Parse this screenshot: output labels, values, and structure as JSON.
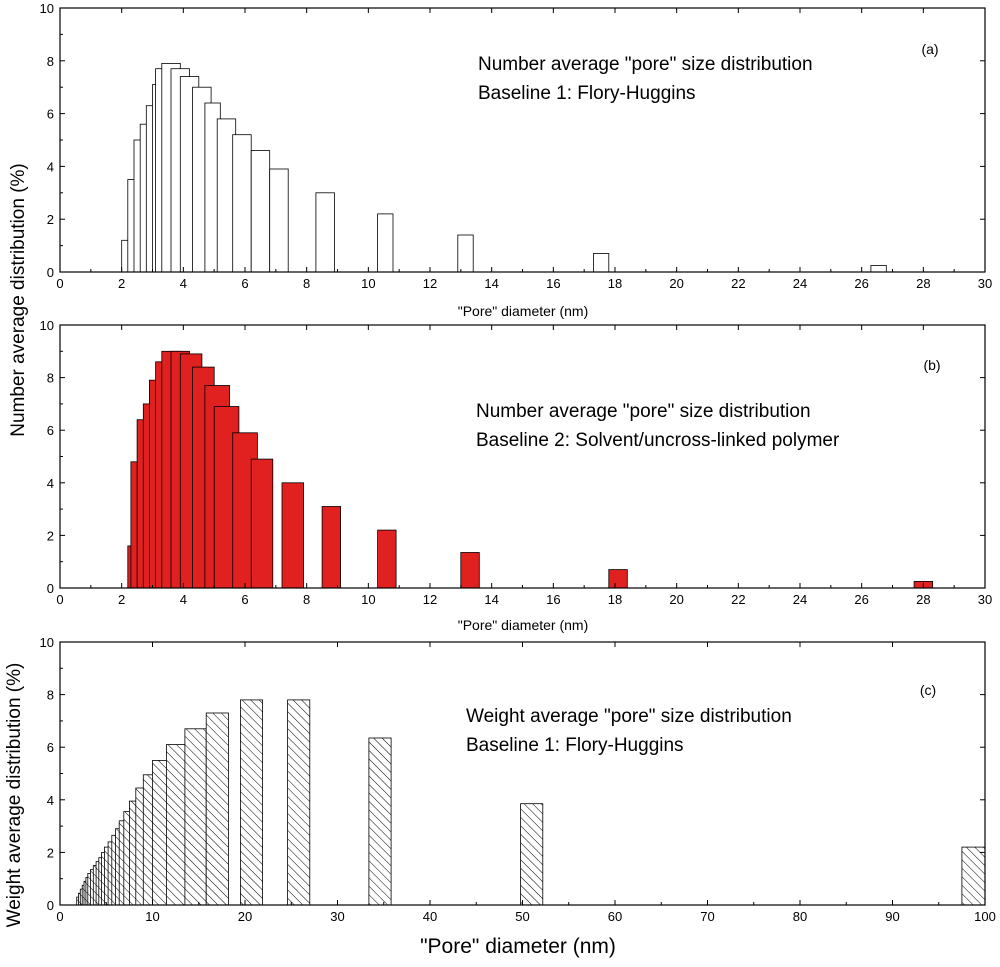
{
  "figure": {
    "shared_ylabel_ab": "Number average distribution (%)"
  },
  "chart_data": [
    {
      "type": "bar",
      "panel_label": "(a)",
      "annotation": [
        "Number average \"pore\" size distribution",
        "Baseline 1: Flory-Huggins"
      ],
      "xlabel": "\"Pore\" diameter (nm)",
      "ylabel": "",
      "xlim": [
        0,
        30
      ],
      "ylim": [
        0,
        10
      ],
      "xticks": [
        0,
        2,
        4,
        6,
        8,
        10,
        12,
        14,
        16,
        18,
        20,
        22,
        24,
        26,
        28,
        30
      ],
      "yticks": [
        0,
        2,
        4,
        6,
        8,
        10
      ],
      "fill": "#ffffff",
      "stroke": "#000000",
      "pattern": "none",
      "bars": [
        {
          "x0": 2.0,
          "x1": 2.5,
          "value": 1.2
        },
        {
          "x0": 2.2,
          "x1": 2.7,
          "value": 3.5
        },
        {
          "x0": 2.4,
          "x1": 2.9,
          "value": 5.0
        },
        {
          "x0": 2.6,
          "x1": 3.1,
          "value": 5.6
        },
        {
          "x0": 2.8,
          "x1": 3.3,
          "value": 6.3
        },
        {
          "x0": 3.0,
          "x1": 3.6,
          "value": 7.1
        },
        {
          "x0": 3.1,
          "x1": 3.7,
          "value": 7.7
        },
        {
          "x0": 3.3,
          "x1": 3.9,
          "value": 7.9
        },
        {
          "x0": 3.6,
          "x1": 4.2,
          "value": 7.7
        },
        {
          "x0": 3.9,
          "x1": 4.5,
          "value": 7.4
        },
        {
          "x0": 4.3,
          "x1": 4.9,
          "value": 7.0
        },
        {
          "x0": 4.7,
          "x1": 5.2,
          "value": 6.4
        },
        {
          "x0": 5.1,
          "x1": 5.7,
          "value": 5.8
        },
        {
          "x0": 5.6,
          "x1": 6.2,
          "value": 5.2
        },
        {
          "x0": 6.2,
          "x1": 6.8,
          "value": 4.6
        },
        {
          "x0": 6.8,
          "x1": 7.4,
          "value": 3.9
        },
        {
          "x0": 8.3,
          "x1": 8.9,
          "value": 3.0
        },
        {
          "x0": 10.3,
          "x1": 10.8,
          "value": 2.2
        },
        {
          "x0": 12.9,
          "x1": 13.4,
          "value": 1.4
        },
        {
          "x0": 17.3,
          "x1": 17.8,
          "value": 0.7
        },
        {
          "x0": 26.3,
          "x1": 26.8,
          "value": 0.25
        }
      ]
    },
    {
      "type": "bar",
      "panel_label": "(b)",
      "annotation": [
        "Number average \"pore\" size distribution",
        "Baseline 2: Solvent/uncross-linked polymer"
      ],
      "xlabel": "\"Pore\" diameter (nm)",
      "ylabel": "",
      "xlim": [
        0,
        30
      ],
      "ylim": [
        0,
        10
      ],
      "xticks": [
        0,
        2,
        4,
        6,
        8,
        10,
        12,
        14,
        16,
        18,
        20,
        22,
        24,
        26,
        28,
        30
      ],
      "yticks": [
        0,
        2,
        4,
        6,
        8,
        10
      ],
      "fill": "#e12020",
      "stroke": "#000000",
      "pattern": "none",
      "bars": [
        {
          "x0": 2.2,
          "x1": 2.4,
          "value": 1.6
        },
        {
          "x0": 2.3,
          "x1": 2.6,
          "value": 4.8
        },
        {
          "x0": 2.5,
          "x1": 2.8,
          "value": 6.4
        },
        {
          "x0": 2.7,
          "x1": 3.0,
          "value": 7.0
        },
        {
          "x0": 2.9,
          "x1": 3.3,
          "value": 7.9
        },
        {
          "x0": 3.1,
          "x1": 3.5,
          "value": 8.6
        },
        {
          "x0": 3.3,
          "x1": 3.9,
          "value": 9.0
        },
        {
          "x0": 3.6,
          "x1": 4.2,
          "value": 9.0
        },
        {
          "x0": 3.9,
          "x1": 4.6,
          "value": 8.9
        },
        {
          "x0": 4.3,
          "x1": 5.0,
          "value": 8.4
        },
        {
          "x0": 4.7,
          "x1": 5.5,
          "value": 7.7
        },
        {
          "x0": 5.0,
          "x1": 5.8,
          "value": 6.9
        },
        {
          "x0": 5.6,
          "x1": 6.4,
          "value": 5.9
        },
        {
          "x0": 6.2,
          "x1": 6.9,
          "value": 4.9
        },
        {
          "x0": 7.2,
          "x1": 7.9,
          "value": 4.0
        },
        {
          "x0": 8.5,
          "x1": 9.1,
          "value": 3.1
        },
        {
          "x0": 10.3,
          "x1": 10.9,
          "value": 2.2
        },
        {
          "x0": 13.0,
          "x1": 13.6,
          "value": 1.35
        },
        {
          "x0": 17.8,
          "x1": 18.4,
          "value": 0.7
        },
        {
          "x0": 27.7,
          "x1": 28.3,
          "value": 0.25
        }
      ]
    },
    {
      "type": "bar",
      "panel_label": "(c)",
      "annotation": [
        "Weight average \"pore\" size distribution",
        "Baseline 1: Flory-Huggins"
      ],
      "xlabel": "\"Pore\" diameter (nm)",
      "ylabel": "Weight average distribution (%)",
      "xlim": [
        0,
        100
      ],
      "ylim": [
        0,
        10
      ],
      "xticks": [
        0,
        10,
        20,
        30,
        40,
        50,
        60,
        70,
        80,
        90,
        100
      ],
      "yticks": [
        0,
        2,
        4,
        6,
        8,
        10
      ],
      "fill": "#ffffff",
      "stroke": "#000000",
      "pattern": "diagonal-hatch",
      "bars": [
        {
          "x0": 1.8,
          "x1": 3.8,
          "value": 0.3
        },
        {
          "x0": 2.0,
          "x1": 4.0,
          "value": 0.45
        },
        {
          "x0": 2.2,
          "x1": 4.2,
          "value": 0.6
        },
        {
          "x0": 2.4,
          "x1": 4.4,
          "value": 0.75
        },
        {
          "x0": 2.6,
          "x1": 4.6,
          "value": 0.9
        },
        {
          "x0": 2.8,
          "x1": 4.8,
          "value": 1.05
        },
        {
          "x0": 3.0,
          "x1": 5.0,
          "value": 1.2
        },
        {
          "x0": 3.3,
          "x1": 5.3,
          "value": 1.35
        },
        {
          "x0": 3.6,
          "x1": 5.6,
          "value": 1.5
        },
        {
          "x0": 3.9,
          "x1": 5.9,
          "value": 1.65
        },
        {
          "x0": 4.2,
          "x1": 6.2,
          "value": 1.8
        },
        {
          "x0": 4.5,
          "x1": 6.5,
          "value": 2.0
        },
        {
          "x0": 4.8,
          "x1": 6.8,
          "value": 2.2
        },
        {
          "x0": 5.2,
          "x1": 7.2,
          "value": 2.4
        },
        {
          "x0": 5.6,
          "x1": 7.6,
          "value": 2.65
        },
        {
          "x0": 6.0,
          "x1": 8.0,
          "value": 2.9
        },
        {
          "x0": 6.4,
          "x1": 8.4,
          "value": 3.2
        },
        {
          "x0": 6.9,
          "x1": 8.9,
          "value": 3.55
        },
        {
          "x0": 7.5,
          "x1": 9.5,
          "value": 3.95
        },
        {
          "x0": 8.2,
          "x1": 10.2,
          "value": 4.45
        },
        {
          "x0": 9.0,
          "x1": 11.0,
          "value": 4.95
        },
        {
          "x0": 10.0,
          "x1": 12.2,
          "value": 5.5
        },
        {
          "x0": 11.5,
          "x1": 13.7,
          "value": 6.1
        },
        {
          "x0": 13.5,
          "x1": 15.8,
          "value": 6.7
        },
        {
          "x0": 15.8,
          "x1": 18.2,
          "value": 7.3
        },
        {
          "x0": 19.5,
          "x1": 21.9,
          "value": 7.8
        },
        {
          "x0": 24.6,
          "x1": 27.0,
          "value": 7.8
        },
        {
          "x0": 33.4,
          "x1": 35.8,
          "value": 6.35
        },
        {
          "x0": 49.8,
          "x1": 52.2,
          "value": 3.85
        },
        {
          "x0": 97.5,
          "x1": 100.0,
          "value": 2.2
        }
      ]
    }
  ]
}
